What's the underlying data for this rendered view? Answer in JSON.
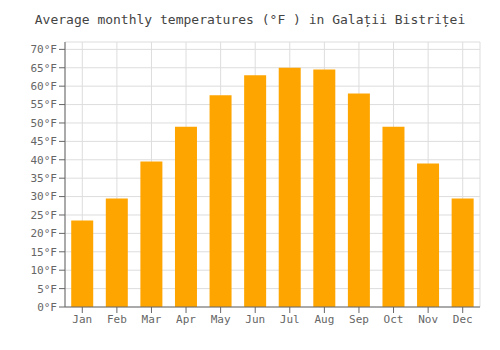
{
  "chart_data": {
    "type": "bar",
    "title": "Average monthly temperatures (°F ) in Galații Bistriței",
    "categories": [
      "Jan",
      "Feb",
      "Mar",
      "Apr",
      "May",
      "Jun",
      "Jul",
      "Aug",
      "Sep",
      "Oct",
      "Nov",
      "Dec"
    ],
    "values": [
      23.5,
      29.5,
      39.5,
      49.0,
      57.5,
      63.0,
      65.0,
      64.5,
      58.0,
      49.0,
      39.0,
      29.5
    ],
    "color": "#FFA500",
    "ylim": [
      0,
      72
    ],
    "yticks": [
      {
        "value": 0,
        "label": "0°F"
      },
      {
        "value": 5,
        "label": "5°F"
      },
      {
        "value": 10,
        "label": "10°F"
      },
      {
        "value": 15,
        "label": "15°F"
      },
      {
        "value": 20,
        "label": "20°F"
      },
      {
        "value": 25,
        "label": "25°F"
      },
      {
        "value": 30,
        "label": "30°F"
      },
      {
        "value": 35,
        "label": "35°F"
      },
      {
        "value": 40,
        "label": "40°F"
      },
      {
        "value": 45,
        "label": "45°F"
      },
      {
        "value": 50,
        "label": "50°F"
      },
      {
        "value": 55,
        "label": "55°F"
      },
      {
        "value": 60,
        "label": "60°F"
      },
      {
        "value": 65,
        "label": "65°F"
      },
      {
        "value": 70,
        "label": "70°F"
      }
    ],
    "grid": true
  }
}
